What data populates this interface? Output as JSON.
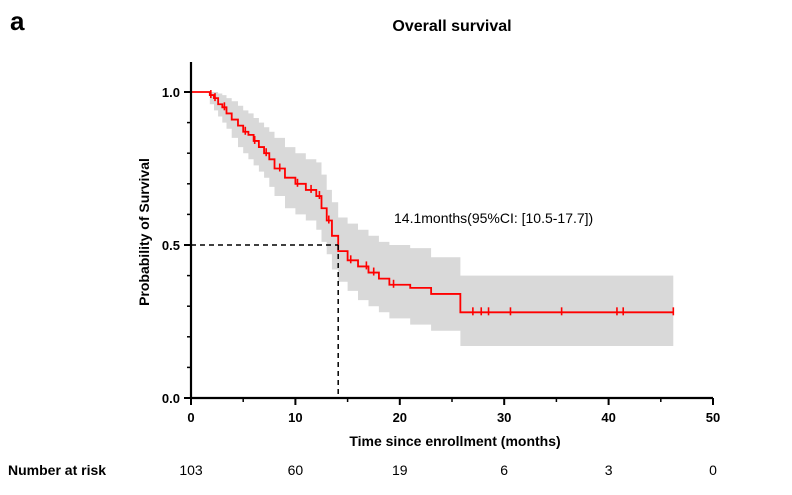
{
  "panel_letter": "a",
  "annotation": "14.1months(95%CI: [10.5-17.7])",
  "risk": {
    "label": "Number at risk",
    "at": [
      0,
      10,
      20,
      30,
      40,
      50
    ],
    "values": [
      "103",
      "60",
      "19",
      "6",
      "3",
      "0"
    ]
  },
  "colors": {
    "curve": "#ff0000",
    "ci_band": "#d9d9d9",
    "axis": "#000000"
  },
  "chart_data": {
    "type": "line",
    "title": "Overall survival",
    "xlabel": "Time since enrollment (months)",
    "ylabel": "Probability of Survival",
    "xlim": [
      0,
      50
    ],
    "ylim": [
      0,
      1.0
    ],
    "x_ticks": [
      0,
      10,
      20,
      30,
      40,
      50
    ],
    "x_tick_labels": [
      "0",
      "10",
      "20",
      "30",
      "40",
      "50"
    ],
    "y_ticks": [
      0,
      0.5,
      1.0
    ],
    "y_tick_labels": [
      "0.0",
      "0.5",
      "1.0"
    ],
    "grid": false,
    "median_line": {
      "x": 14.1,
      "y": 0.5
    },
    "series": [
      {
        "values_x": [
          0,
          1.8,
          2.2,
          2.6,
          3.0,
          3.4,
          3.9,
          4.5,
          5.0,
          5.5,
          6.0,
          6.5,
          7.0,
          7.5,
          8.0,
          9.0,
          10.0,
          11.0,
          12.0,
          12.5,
          13.0,
          13.5,
          14.1,
          15.0,
          16.0,
          17.0,
          18.0,
          19.0,
          21.0,
          23.0,
          25.8,
          46.2
        ],
        "values_y": [
          1.0,
          0.99,
          0.98,
          0.96,
          0.95,
          0.93,
          0.91,
          0.89,
          0.87,
          0.86,
          0.84,
          0.82,
          0.8,
          0.78,
          0.75,
          0.72,
          0.7,
          0.68,
          0.66,
          0.62,
          0.58,
          0.53,
          0.48,
          0.45,
          0.43,
          0.41,
          0.39,
          0.37,
          0.36,
          0.34,
          0.28,
          0.28
        ],
        "ci_upper": [
          1.0,
          1.0,
          1.0,
          0.995,
          0.99,
          0.98,
          0.97,
          0.955,
          0.94,
          0.93,
          0.915,
          0.9,
          0.885,
          0.87,
          0.85,
          0.82,
          0.8,
          0.78,
          0.77,
          0.73,
          0.68,
          0.64,
          0.59,
          0.57,
          0.55,
          0.53,
          0.51,
          0.5,
          0.49,
          0.46,
          0.4,
          0.4
        ],
        "ci_lower": [
          1.0,
          0.96,
          0.94,
          0.92,
          0.9,
          0.88,
          0.85,
          0.82,
          0.8,
          0.78,
          0.76,
          0.74,
          0.72,
          0.69,
          0.66,
          0.62,
          0.6,
          0.58,
          0.55,
          0.51,
          0.47,
          0.42,
          0.38,
          0.35,
          0.32,
          0.3,
          0.28,
          0.26,
          0.24,
          0.22,
          0.17,
          0.17
        ],
        "censor_x": [
          1.9,
          2.3,
          3.2,
          5.2,
          6.1,
          7.2,
          8.5,
          10.2,
          11.5,
          12.3,
          13.2,
          15.3,
          16.8,
          17.5,
          19.4,
          27.0,
          27.8,
          28.5,
          30.6,
          35.5,
          40.8,
          41.4,
          46.2
        ]
      }
    ]
  }
}
